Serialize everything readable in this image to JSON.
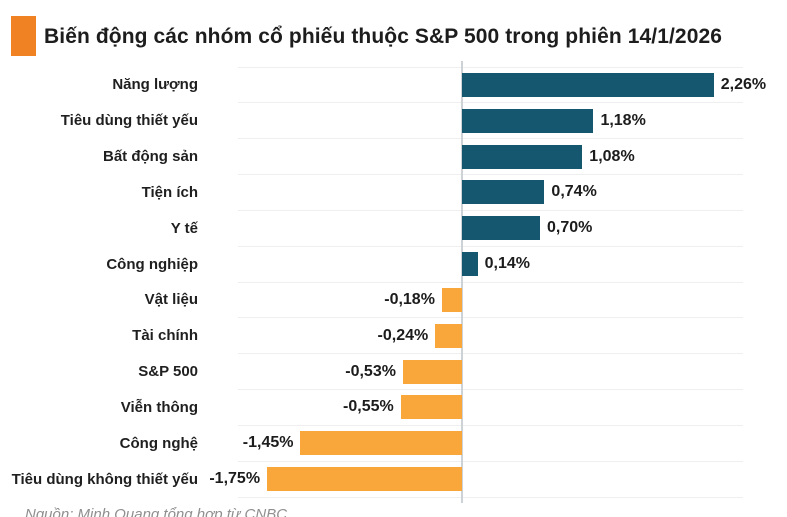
{
  "title": {
    "text": "Biến động các nhóm cổ phiếu thuộc S&P 500 trong phiên 14/1/2026",
    "marker_color": "#F08223"
  },
  "chart_data": {
    "type": "bar",
    "orientation": "horizontal",
    "title": "Biến động các nhóm cổ phiếu thuộc S&P 500 trong phiên 14/1/2026",
    "categories": [
      "Năng lượng",
      "Tiêu dùng thiết yếu",
      "Bất động sản",
      "Tiện ích",
      "Y tế",
      "Công nghiệp",
      "Vật liệu",
      "Tài chính",
      "S&P 500",
      "Viễn thông",
      "Công nghệ",
      "Tiêu dùng không thiết yếu"
    ],
    "values": [
      2.26,
      1.18,
      1.08,
      0.74,
      0.7,
      0.14,
      -0.18,
      -0.24,
      -0.53,
      -0.55,
      -1.45,
      -1.75
    ],
    "value_labels": [
      "2,26%",
      "1,18%",
      "1,08%",
      "0,74%",
      "0,70%",
      "0,14%",
      "-0,18%",
      "-0,24%",
      "-0,53%",
      "-0,55%",
      "-1,45%",
      "-1,75%"
    ],
    "unit": "%",
    "xlabel": "",
    "ylabel": "",
    "xlim": [
      -2.0,
      2.52
    ],
    "grid": "horizontal row separators, zero axis line",
    "legend": "none",
    "colors": {
      "positive_bar": "#15576F",
      "negative_bar": "#F9A63B",
      "gridline": "#efefef",
      "axis_line": "#cdd2d6",
      "label_text": "#1f1f1f"
    }
  },
  "footer": {
    "source": "Nguồn: Minh Quang tổng hợp từ CNBC"
  }
}
